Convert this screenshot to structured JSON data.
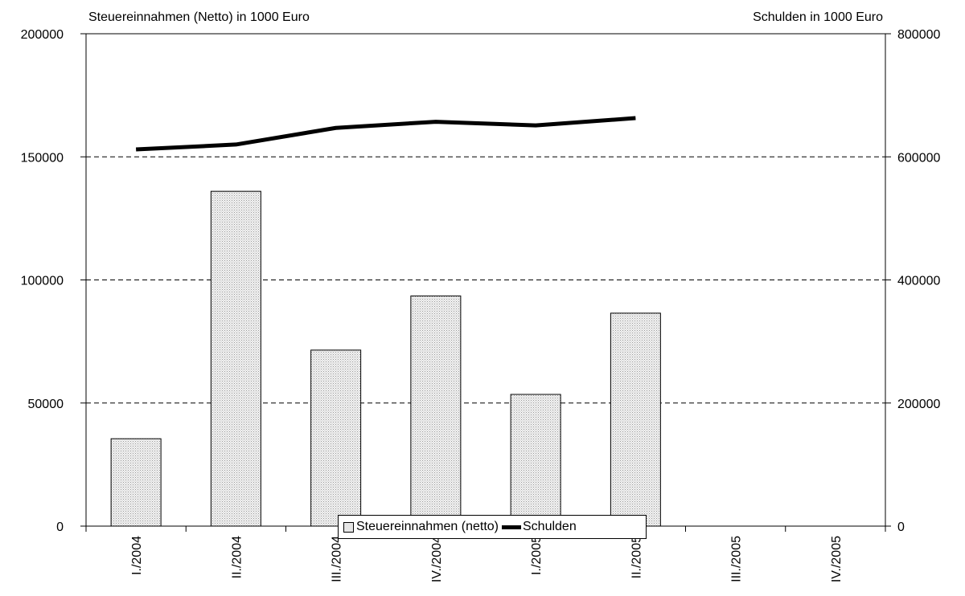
{
  "chart_data": {
    "type": "bar",
    "categories": [
      "I./2004",
      "II./2004",
      "III./2004",
      "IV./2004",
      "I./2005",
      "II./2005",
      "III./2005",
      "IV./2005"
    ],
    "series": [
      {
        "name": "Steuereinnahmen (netto)",
        "type": "bar",
        "axis": "left",
        "values": [
          35500,
          136000,
          71500,
          93500,
          53500,
          86500,
          null,
          null
        ]
      },
      {
        "name": "Schulden",
        "type": "line",
        "axis": "right",
        "values": [
          612000,
          620000,
          647000,
          657000,
          651000,
          663000,
          null,
          null
        ]
      }
    ],
    "ylabel": "Steuereinnahmen (Netto) in 1000 Euro",
    "y2label": "Schulden in 1000 Euro",
    "ylim": [
      0,
      200000
    ],
    "y2lim": [
      0,
      800000
    ],
    "yticks": [
      0,
      50000,
      100000,
      150000,
      200000
    ],
    "y2ticks": [
      0,
      200000,
      400000,
      600000,
      800000
    ],
    "ytick_labels": [
      "0",
      "50000",
      "100000",
      "150000",
      "200000"
    ],
    "y2tick_labels": [
      "0",
      "200000",
      "400000",
      "600000",
      "800000"
    ],
    "grid": "horizontal dashed",
    "legend_position": "bottom-center",
    "colors": {
      "bar_fill": "#e6e6e6",
      "bar_stroke": "#000000",
      "line": "#000000"
    }
  }
}
